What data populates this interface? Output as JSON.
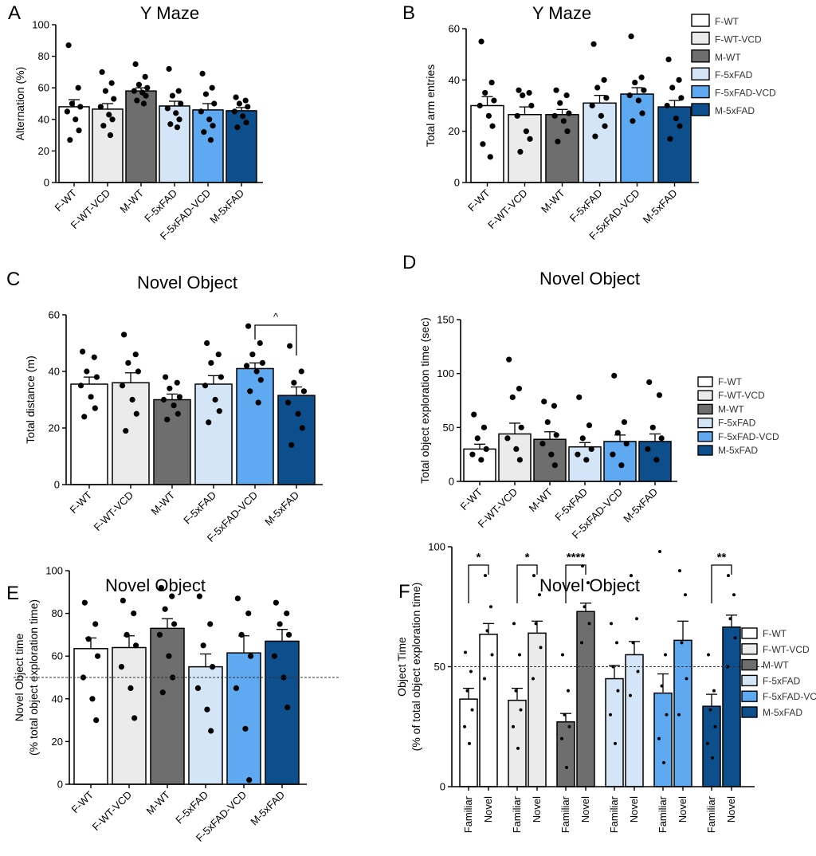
{
  "colors": {
    "F-WT": "#ffffff",
    "F-WT-VCD": "#ebebeb",
    "M-WT": "#6e6e6e",
    "F-5xFAD": "#d4e5f7",
    "F-5xFAD-VCD": "#5fa9f0",
    "M-5xFAD": "#0d4f8c"
  },
  "legend": {
    "entries": [
      "F-WT",
      "F-WT-VCD",
      "M-WT",
      "F-5xFAD",
      "F-5xFAD-VCD",
      "M-5xFAD"
    ]
  },
  "chart_data": [
    {
      "id": "A",
      "letter": "A",
      "type": "bar",
      "title": "Y Maze",
      "xlabel": "",
      "ylabel": "Alternation (%)",
      "ylim": [
        0,
        100
      ],
      "yticks": [
        "0",
        "20",
        "40",
        "60",
        "80",
        "100"
      ],
      "categories": [
        "F-WT",
        "F-WT-VCD",
        "M-WT",
        "F-5xFAD",
        "F-5xFAD-VCD",
        "M-5xFAD"
      ],
      "values": [
        48,
        46.5,
        58,
        48.5,
        46,
        45.5
      ],
      "sem": [
        4.5,
        3.5,
        2,
        3,
        4,
        2
      ],
      "points": [
        [
          87,
          60,
          50,
          48,
          45,
          40,
          33,
          27
        ],
        [
          70,
          63,
          58,
          53,
          48,
          43,
          40,
          36,
          30
        ],
        [
          75,
          67,
          62,
          60,
          58,
          57,
          55,
          52,
          50
        ],
        [
          72,
          58,
          55,
          50,
          47,
          44,
          40,
          37,
          35
        ],
        [
          69,
          60,
          56,
          50,
          45,
          40,
          36,
          32,
          27
        ],
        [
          54,
          52,
          50,
          48,
          45,
          42,
          38,
          35
        ]
      ],
      "significance": []
    },
    {
      "id": "B",
      "letter": "B",
      "type": "bar",
      "title": "Y Maze",
      "xlabel": "",
      "ylabel": "Total arm entries",
      "ylim": [
        0,
        60
      ],
      "yticks": [
        "0",
        "20",
        "40",
        "60"
      ],
      "categories": [
        "F-WT",
        "F-WT-VCD",
        "M-WT",
        "F-5xFAD",
        "F-5xFAD-VCD",
        "M-5xFAD"
      ],
      "values": [
        30,
        26.5,
        26.5,
        31,
        34.5,
        29.5
      ],
      "sem": [
        3.5,
        3,
        2,
        3,
        2.5,
        2.5
      ],
      "points": [
        [
          55,
          39,
          35,
          32,
          30,
          26,
          22,
          15,
          10
        ],
        [
          36,
          35,
          34,
          30,
          26,
          20,
          17,
          12
        ],
        [
          36,
          34,
          31,
          27,
          26,
          24,
          20,
          16
        ],
        [
          54,
          40,
          37,
          33,
          30,
          26,
          22,
          18
        ],
        [
          57,
          41,
          39,
          36,
          34,
          32,
          27,
          24
        ],
        [
          48,
          40,
          37,
          33,
          30,
          25,
          22,
          17
        ]
      ],
      "significance": []
    },
    {
      "id": "C",
      "letter": "C",
      "type": "bar",
      "title": "Novel Object",
      "xlabel": "",
      "ylabel": "Total distance (m)",
      "ylim": [
        0,
        60
      ],
      "yticks": [
        "0",
        "20",
        "40",
        "60"
      ],
      "categories": [
        "F-WT",
        "F-WT-VCD",
        "M-WT",
        "F-5xFAD",
        "F-5xFAD-VCD",
        "M-5xFAD"
      ],
      "values": [
        35.5,
        36,
        30,
        35.5,
        41,
        31.5
      ],
      "sem": [
        2.5,
        3.5,
        2,
        3,
        2,
        3
      ],
      "points": [
        [
          47,
          45,
          40,
          38,
          35,
          31,
          27,
          24
        ],
        [
          53,
          46,
          43,
          40,
          35,
          30,
          25,
          19
        ],
        [
          38,
          36,
          34,
          31,
          30,
          28,
          25,
          23
        ],
        [
          50,
          46,
          43,
          38,
          35,
          30,
          26,
          22
        ],
        [
          56,
          50,
          46,
          43,
          42,
          40,
          37,
          33,
          29
        ],
        [
          49,
          40,
          36,
          33,
          29,
          25,
          20,
          14
        ]
      ],
      "significance": [
        {
          "from": 4,
          "to": 5,
          "label": "^"
        }
      ]
    },
    {
      "id": "D",
      "letter": "D",
      "type": "bar",
      "title": "Novel Object",
      "xlabel": "",
      "ylabel": "Total object exploration time (sec)",
      "ylim": [
        0,
        150
      ],
      "yticks": [
        "0",
        "50",
        "100",
        "150"
      ],
      "categories": [
        "F-WT",
        "F-WT-VCD",
        "M-WT",
        "F-5xFAD",
        "F-5xFAD-VCD",
        "M-5xFAD"
      ],
      "values": [
        30,
        44,
        39,
        32,
        37,
        37
      ],
      "sem": [
        4.5,
        10,
        7,
        4,
        6,
        7
      ],
      "points": [
        [
          62,
          50,
          40,
          30,
          25,
          20
        ],
        [
          113,
          86,
          78,
          50,
          40,
          30,
          20
        ],
        [
          74,
          70,
          55,
          43,
          35,
          25,
          15
        ],
        [
          78,
          52,
          40,
          30,
          25,
          20
        ],
        [
          98,
          55,
          45,
          35,
          25,
          15
        ],
        [
          92,
          80,
          50,
          40,
          30,
          20
        ]
      ],
      "significance": []
    },
    {
      "id": "E",
      "letter": "E",
      "type": "bar",
      "title": "Novel Object",
      "xlabel": "",
      "ylabel": "Novel Object time (% total object exploration time)",
      "ylabel_lines": [
        "Novel Object time",
        "(% total object exploration time)"
      ],
      "ylim": [
        0,
        100
      ],
      "yticks": [
        "0",
        "20",
        "40",
        "60",
        "80",
        "100"
      ],
      "reference_line": 50,
      "categories": [
        "F-WT",
        "F-WT-VCD",
        "M-WT",
        "F-5xFAD",
        "F-5xFAD-VCD",
        "M-5xFAD"
      ],
      "values": [
        63.5,
        64,
        73,
        55,
        61.5,
        67
      ],
      "sem": [
        5,
        5.5,
        4.5,
        6,
        8,
        5.5
      ],
      "points": [
        [
          85,
          75,
          68,
          60,
          50,
          40,
          30
        ],
        [
          86,
          80,
          70,
          65,
          55,
          45,
          31
        ],
        [
          92,
          88,
          82,
          75,
          70,
          60,
          50,
          43
        ],
        [
          88,
          75,
          65,
          55,
          45,
          35,
          25
        ],
        [
          87,
          80,
          70,
          60,
          45,
          26,
          2
        ],
        [
          85,
          80,
          75,
          70,
          60,
          50,
          36
        ]
      ],
      "significance": []
    },
    {
      "id": "F",
      "letter": "F",
      "type": "bar",
      "title": "Novel Object",
      "xlabel": "",
      "ylabel": "Object Time (% of total object exploration time)",
      "ylabel_lines": [
        "Object Time",
        "(% of total object exploration time)"
      ],
      "ylim": [
        0,
        100
      ],
      "yticks": [
        "0",
        "50",
        "100"
      ],
      "reference_line": 50,
      "groups": [
        "F-WT",
        "F-WT-VCD",
        "M-WT",
        "F-5xFAD",
        "F-5xFAD-VCD",
        "M-5xFAD"
      ],
      "subcategories": [
        "Familiar",
        "Novel"
      ],
      "series": [
        {
          "name": "Familiar",
          "values": [
            36.5,
            36,
            27,
            45,
            39,
            33.5
          ],
          "sem": [
            4.5,
            5,
            3.5,
            5.5,
            8,
            5
          ]
        },
        {
          "name": "Novel",
          "values": [
            63.5,
            64,
            73,
            55,
            61,
            66.5
          ],
          "sem": [
            4.5,
            5,
            3.5,
            5.5,
            8,
            5
          ]
        }
      ],
      "points": [
        [
          [
            56,
            48,
            40,
            32,
            25,
            18
          ],
          [
            88,
            75,
            65,
            55,
            45
          ]
        ],
        [
          [
            68,
            55,
            40,
            32,
            25,
            16
          ],
          [
            88,
            80,
            68,
            58,
            45
          ]
        ],
        [
          [
            55,
            40,
            30,
            25,
            20,
            8
          ],
          [
            92,
            85,
            75,
            68,
            60
          ]
        ],
        [
          [
            68,
            60,
            50,
            40,
            30,
            18
          ],
          [
            88,
            70,
            60,
            48,
            38
          ]
        ],
        [
          [
            98,
            55,
            42,
            30,
            20,
            10
          ],
          [
            90,
            80,
            60,
            45,
            30
          ]
        ],
        [
          [
            55,
            40,
            32,
            25,
            18,
            12
          ],
          [
            88,
            80,
            70,
            62,
            50
          ]
        ]
      ],
      "significance": [
        {
          "group": 0,
          "label": "*"
        },
        {
          "group": 1,
          "label": "*"
        },
        {
          "group": 2,
          "label": "****"
        },
        {
          "group": 5,
          "label": "**"
        }
      ]
    }
  ]
}
